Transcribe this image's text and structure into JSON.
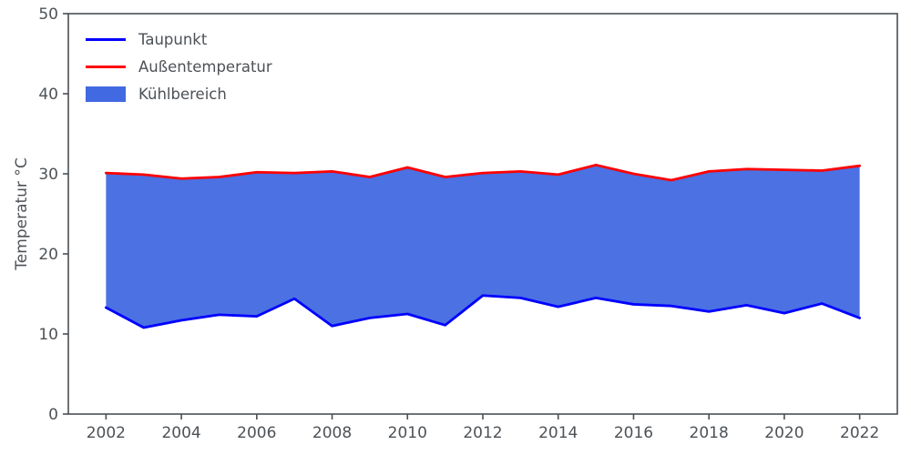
{
  "chart_data": {
    "type": "area",
    "title": "",
    "xlabel": "",
    "ylabel": "Temperatur °C",
    "x": [
      2002,
      2003,
      2004,
      2005,
      2006,
      2007,
      2008,
      2009,
      2010,
      2011,
      2012,
      2013,
      2014,
      2015,
      2016,
      2017,
      2018,
      2019,
      2020,
      2021,
      2022
    ],
    "series": [
      {
        "name": "Taupunkt",
        "color": "#0000ff",
        "values": [
          13.3,
          10.8,
          11.7,
          12.4,
          12.2,
          14.4,
          11.0,
          12.0,
          12.5,
          11.1,
          14.8,
          14.5,
          13.4,
          14.5,
          13.7,
          13.5,
          12.8,
          13.6,
          12.6,
          13.8,
          12.0
        ]
      },
      {
        "name": "Außentemperatur",
        "color": "#ff0000",
        "values": [
          30.1,
          29.9,
          29.4,
          29.6,
          30.2,
          30.1,
          30.3,
          29.6,
          30.8,
          29.6,
          30.1,
          30.3,
          29.9,
          31.1,
          30.0,
          29.2,
          30.3,
          30.6,
          30.5,
          30.4,
          31.0
        ]
      }
    ],
    "fill": {
      "name": "Kühlbereich",
      "color": "#4169e1"
    },
    "xlim": [
      2001,
      2023
    ],
    "ylim": [
      0,
      50
    ],
    "x_ticks": [
      2002,
      2004,
      2006,
      2008,
      2010,
      2012,
      2014,
      2016,
      2018,
      2020,
      2022
    ],
    "y_ticks": [
      0,
      10,
      20,
      30,
      40,
      50
    ],
    "legend_position": "upper-left",
    "grid": false,
    "axis_color": "#4a4f54",
    "tick_label_color": "#4d5257",
    "line_width": 2.8
  }
}
